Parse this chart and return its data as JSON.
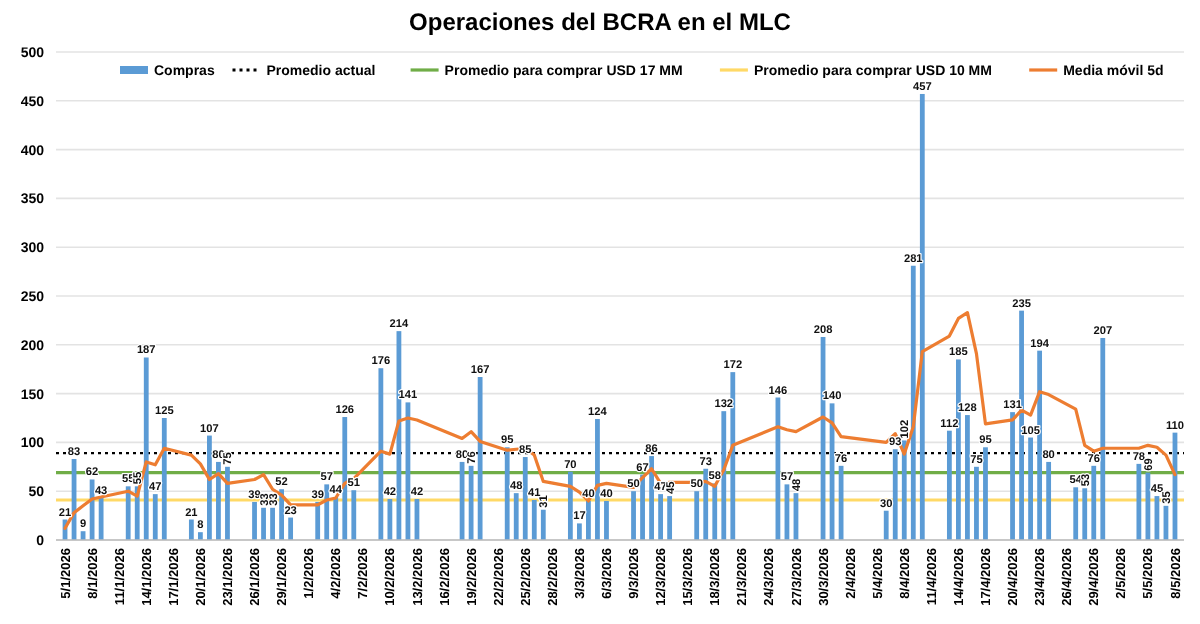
{
  "chart_data": {
    "type": "bar",
    "title": "Operaciones del BCRA en el MLC",
    "x": [
      "2026-01-05",
      "2026-01-06",
      "2026-01-07",
      "2026-01-08",
      "2026-01-09",
      "2026-01-12",
      "2026-01-13",
      "2026-01-14",
      "2026-01-15",
      "2026-01-16",
      "2026-01-19",
      "2026-01-20",
      "2026-01-21",
      "2026-01-22",
      "2026-01-23",
      "2026-01-26",
      "2026-01-27",
      "2026-01-28",
      "2026-01-29",
      "2026-01-30",
      "2026-02-02",
      "2026-02-03",
      "2026-02-04",
      "2026-02-05",
      "2026-02-06",
      "2026-02-09",
      "2026-02-10",
      "2026-02-11",
      "2026-02-12",
      "2026-02-13",
      "2026-02-18",
      "2026-02-19",
      "2026-02-20",
      "2026-02-23",
      "2026-02-24",
      "2026-02-25",
      "2026-02-26",
      "2026-02-27",
      "2026-03-02",
      "2026-03-03",
      "2026-03-04",
      "2026-03-05",
      "2026-03-06",
      "2026-03-09",
      "2026-03-10",
      "2026-03-11",
      "2026-03-12",
      "2026-03-13",
      "2026-03-16",
      "2026-03-17",
      "2026-03-18",
      "2026-03-19",
      "2026-03-20",
      "2026-03-25",
      "2026-03-26",
      "2026-03-27",
      "2026-03-30",
      "2026-03-31",
      "2026-04-01",
      "2026-04-06",
      "2026-04-07",
      "2026-04-08",
      "2026-04-09",
      "2026-04-10",
      "2026-04-13",
      "2026-04-14",
      "2026-04-15",
      "2026-04-16",
      "2026-04-17",
      "2026-04-20",
      "2026-04-21",
      "2026-04-22",
      "2026-04-23",
      "2026-04-24",
      "2026-04-27",
      "2026-04-28",
      "2026-04-29",
      "2026-04-30",
      "2026-05-04",
      "2026-05-05",
      "2026-05-06",
      "2026-05-07",
      "2026-05-08"
    ],
    "series": [
      {
        "name": "Compras",
        "color": "#5b9bd5",
        "values": [
          21,
          83,
          9,
          62,
          43,
          55,
          55,
          187,
          47,
          125,
          21,
          8,
          107,
          80,
          75,
          39,
          33,
          33,
          52,
          23,
          39,
          57,
          44,
          126,
          51,
          176,
          42,
          214,
          141,
          42,
          80,
          76,
          167,
          95,
          48,
          85,
          41,
          31,
          70,
          17,
          40,
          124,
          40,
          50,
          67,
          86,
          47,
          45,
          50,
          73,
          58,
          132,
          172,
          146,
          57,
          48,
          208,
          140,
          76,
          30,
          93,
          102,
          281,
          457,
          112,
          185,
          128,
          75,
          95,
          131,
          235,
          105,
          194,
          80,
          54,
          53,
          76,
          207,
          78,
          69,
          45,
          35,
          110
        ],
        "value_labels": [
          "21",
          "83",
          "9",
          "62",
          "43",
          "55",
          "55",
          "187",
          "47",
          "125",
          "21",
          "8",
          "107",
          "80",
          "75",
          "39",
          "33",
          "33",
          "52",
          "23",
          "39",
          "57",
          "44",
          "126",
          "51",
          "176",
          "42",
          "214",
          "141",
          "42",
          "80",
          "76",
          "167",
          "95",
          "48",
          "85",
          "41",
          "31",
          "70",
          "17",
          "40",
          "124",
          "40",
          "50",
          "67",
          "86",
          "47",
          "45",
          "50",
          "73",
          "58",
          "132",
          "172",
          "146",
          "57",
          "48",
          "208",
          "140",
          "76",
          "30",
          "93",
          "102",
          "281",
          "457",
          "112",
          "185",
          "128",
          "75",
          "95",
          "131",
          "235",
          "105",
          "194",
          "80",
          "54",
          "53",
          "76",
          "207",
          "78",
          "69",
          "45",
          "35",
          "110"
        ]
      },
      {
        "name": "Media móvil 5d",
        "type": "line",
        "color": "#ed7d31",
        "values": [
          12,
          28,
          35,
          42,
          44,
          50,
          45,
          80,
          77,
          94,
          87,
          78,
          62,
          68,
          58,
          62,
          67,
          52,
          46,
          36,
          36,
          41,
          43,
          58,
          63,
          91,
          88,
          122,
          125,
          123,
          104,
          111,
          101,
          92,
          93,
          94,
          87,
          60,
          55,
          49,
          40,
          56,
          58,
          54,
          64,
          73,
          58,
          59,
          59,
          60,
          55,
          72,
          97,
          116,
          113,
          111,
          126,
          120,
          106,
          100,
          109,
          88,
          116,
          193,
          209,
          227,
          233,
          191,
          119,
          123,
          133,
          128,
          152,
          149,
          134,
          97,
          91,
          94,
          94,
          97,
          95,
          87,
          67
        ]
      }
    ],
    "ref_lines": [
      {
        "axis": "y",
        "value": 89,
        "label": "Promedio actual",
        "color": "#000000",
        "line_style": "dotted"
      },
      {
        "axis": "y",
        "value": 69,
        "label": "Promedio para comprar USD 17 MM",
        "color": "#70ad47",
        "line_style": "solid"
      },
      {
        "axis": "y",
        "value": 41,
        "label": "Promedio para comprar USD 10 MM",
        "color": "#ffd966",
        "line_style": "solid"
      }
    ],
    "xlim": [
      "2026-01-04",
      "2026-05-09"
    ],
    "xticks": [
      {
        "value": "2026-01-05",
        "label": "5/1/2026"
      },
      {
        "value": "2026-01-08",
        "label": "8/1/2026"
      },
      {
        "value": "2026-01-11",
        "label": "11/1/2026"
      },
      {
        "value": "2026-01-14",
        "label": "14/1/2026"
      },
      {
        "value": "2026-01-17",
        "label": "17/1/2026"
      },
      {
        "value": "2026-01-20",
        "label": "20/1/2026"
      },
      {
        "value": "2026-01-23",
        "label": "23/1/2026"
      },
      {
        "value": "2026-01-26",
        "label": "26/1/2026"
      },
      {
        "value": "2026-01-29",
        "label": "29/1/2026"
      },
      {
        "value": "2026-02-01",
        "label": "1/2/2026"
      },
      {
        "value": "2026-02-04",
        "label": "4/2/2026"
      },
      {
        "value": "2026-02-07",
        "label": "7/2/2026"
      },
      {
        "value": "2026-02-10",
        "label": "10/2/2026"
      },
      {
        "value": "2026-02-13",
        "label": "13/2/2026"
      },
      {
        "value": "2026-02-16",
        "label": "16/2/2026"
      },
      {
        "value": "2026-02-19",
        "label": "19/2/2026"
      },
      {
        "value": "2026-02-22",
        "label": "22/2/2026"
      },
      {
        "value": "2026-02-25",
        "label": "25/2/2026"
      },
      {
        "value": "2026-02-28",
        "label": "28/2/2026"
      },
      {
        "value": "2026-03-03",
        "label": "3/3/2026"
      },
      {
        "value": "2026-03-06",
        "label": "6/3/2026"
      },
      {
        "value": "2026-03-09",
        "label": "9/3/2026"
      },
      {
        "value": "2026-03-12",
        "label": "12/3/2026"
      },
      {
        "value": "2026-03-15",
        "label": "15/3/2026"
      },
      {
        "value": "2026-03-18",
        "label": "18/3/2026"
      },
      {
        "value": "2026-03-21",
        "label": "21/3/2026"
      },
      {
        "value": "2026-03-24",
        "label": "24/3/2026"
      },
      {
        "value": "2026-03-27",
        "label": "27/3/2026"
      },
      {
        "value": "2026-03-30",
        "label": "30/3/2026"
      },
      {
        "value": "2026-04-02",
        "label": "2/4/2026"
      },
      {
        "value": "2026-04-05",
        "label": "5/4/2026"
      },
      {
        "value": "2026-04-08",
        "label": "8/4/2026"
      },
      {
        "value": "2026-04-11",
        "label": "11/4/2026"
      },
      {
        "value": "2026-04-14",
        "label": "14/4/2026"
      },
      {
        "value": "2026-04-17",
        "label": "17/4/2026"
      },
      {
        "value": "2026-04-20",
        "label": "20/4/2026"
      },
      {
        "value": "2026-04-23",
        "label": "23/4/2026"
      },
      {
        "value": "2026-04-26",
        "label": "26/4/2026"
      },
      {
        "value": "2026-04-29",
        "label": "29/4/2026"
      },
      {
        "value": "2026-05-02",
        "label": "2/5/2026"
      },
      {
        "value": "2026-05-05",
        "label": "5/5/2026"
      },
      {
        "value": "2026-05-08",
        "label": "8/5/2026"
      }
    ],
    "ylim": [
      0,
      500
    ],
    "yticks": [
      0,
      50,
      100,
      150,
      200,
      250,
      300,
      350,
      400,
      450,
      500
    ],
    "grid": "y",
    "legend": "top"
  }
}
